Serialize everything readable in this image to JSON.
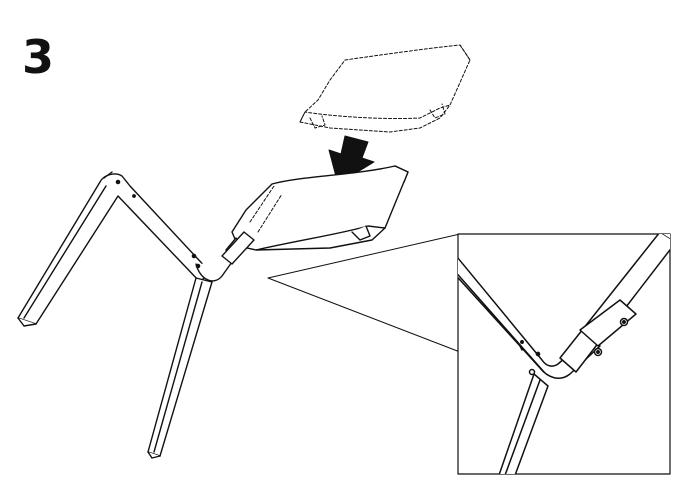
{
  "step": {
    "number": "3"
  },
  "colors": {
    "ink": "#111111",
    "paper": "#ffffff"
  }
}
